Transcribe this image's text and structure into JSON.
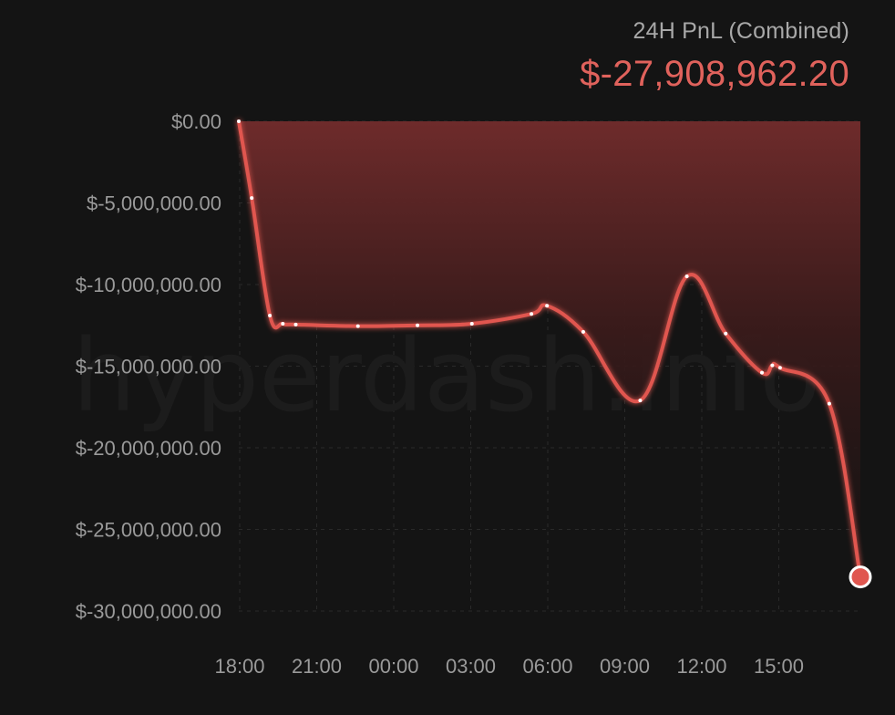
{
  "header": {
    "subtitle": "24H PnL (Combined)",
    "total": "$-27,908,962.20",
    "total_color": "#e0625c"
  },
  "watermark": "hyperdash.info",
  "colors": {
    "line": "#e0564f",
    "area_top": "#6e2b2b",
    "grid": "#2a2a2a",
    "point": "#ffffff",
    "end_marker": "#e0564f"
  },
  "chart_data": {
    "type": "area",
    "title": "24H PnL (Combined)",
    "xlabel": "",
    "ylabel": "",
    "x_ticks": [
      "18:00",
      "21:00",
      "00:00",
      "03:00",
      "06:00",
      "09:00",
      "12:00",
      "15:00"
    ],
    "y_ticks": [
      0,
      -5000000,
      -10000000,
      -15000000,
      -20000000,
      -25000000,
      -30000000
    ],
    "y_tick_labels": [
      "$0.00",
      "$-5,000,000.00",
      "$-10,000,000.00",
      "$-15,000,000.00",
      "$-20,000,000.00",
      "$-25,000,000.00",
      "$-30,000,000.00"
    ],
    "ylim": [
      -32000000,
      0
    ],
    "xlim_hours": [
      0,
      24
    ],
    "grid": true,
    "x_unit": "hours since 18:00",
    "series": [
      {
        "name": "24H PnL (Combined)",
        "x": [
          0,
          0.5,
          1.2,
          1.7,
          2.2,
          4.6,
          6.9,
          9.0,
          11.3,
          11.9,
          13.3,
          15.5,
          17.3,
          18.8,
          20.2,
          20.6,
          20.9,
          22.8,
          24.0
        ],
        "y": [
          0,
          -4700000,
          -11900000,
          -12400000,
          -12450000,
          -12550000,
          -12500000,
          -12400000,
          -11800000,
          -11300000,
          -12900000,
          -17100000,
          -9500000,
          -13000000,
          -15400000,
          -14950000,
          -15100000,
          -17300000,
          -27908962.2
        ]
      }
    ]
  }
}
